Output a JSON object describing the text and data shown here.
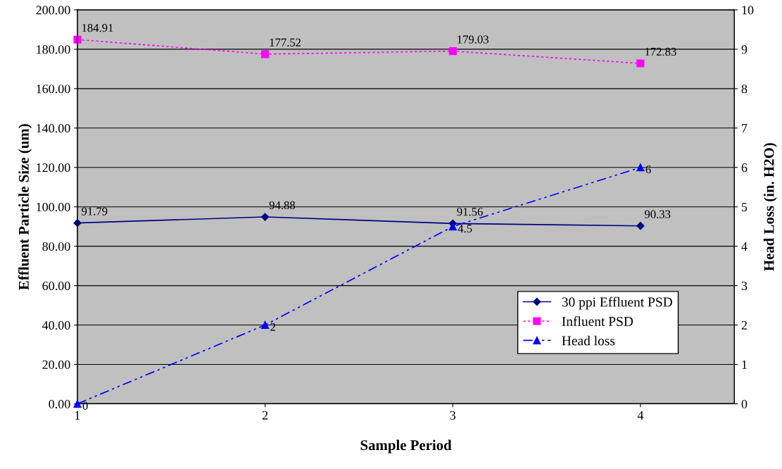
{
  "chart_data": {
    "type": "line",
    "xlabel": "Sample Period",
    "ylabel": "Effluent Particle Size (um)",
    "y2label": "Head Loss (in. H2O)",
    "x": [
      1,
      2,
      3,
      4
    ],
    "xlim": [
      1,
      4.5
    ],
    "xticks": [
      1,
      2,
      3,
      4
    ],
    "ylim": [
      0,
      200
    ],
    "yticks": [
      {
        "value": 0,
        "label": "0.00"
      },
      {
        "value": 20,
        "label": "20.00"
      },
      {
        "value": 40,
        "label": "40.00"
      },
      {
        "value": 60,
        "label": "60.00"
      },
      {
        "value": 80,
        "label": "80.00"
      },
      {
        "value": 100,
        "label": "100.00"
      },
      {
        "value": 120,
        "label": "120.00"
      },
      {
        "value": 140,
        "label": "140.00"
      },
      {
        "value": 160,
        "label": "160.00"
      },
      {
        "value": 180,
        "label": "180.00"
      },
      {
        "value": 200,
        "label": "200.00"
      }
    ],
    "y2lim": [
      0,
      10
    ],
    "y2ticks": [
      0,
      1,
      2,
      3,
      4,
      5,
      6,
      7,
      8,
      9,
      10
    ],
    "grid": "y",
    "legend": "bottom right",
    "data_labels": true,
    "series": [
      {
        "name": "30 ppi Effluent PSD",
        "color": "#000080",
        "values": [
          91.79,
          94.88,
          91.56,
          90.33
        ],
        "marker": "diamond",
        "line_style": "solid"
      },
      {
        "name": "Influent PSD",
        "color": "#ff00ff",
        "values": [
          184.91,
          177.52,
          179.03,
          172.83
        ],
        "marker": "square",
        "line_style": "dotted"
      },
      {
        "name": "Head loss",
        "color": "#0000ff",
        "values": [
          0,
          2,
          4.5,
          6
        ],
        "marker": "triangle",
        "line_style": "dashed",
        "axis": "y2"
      }
    ]
  }
}
